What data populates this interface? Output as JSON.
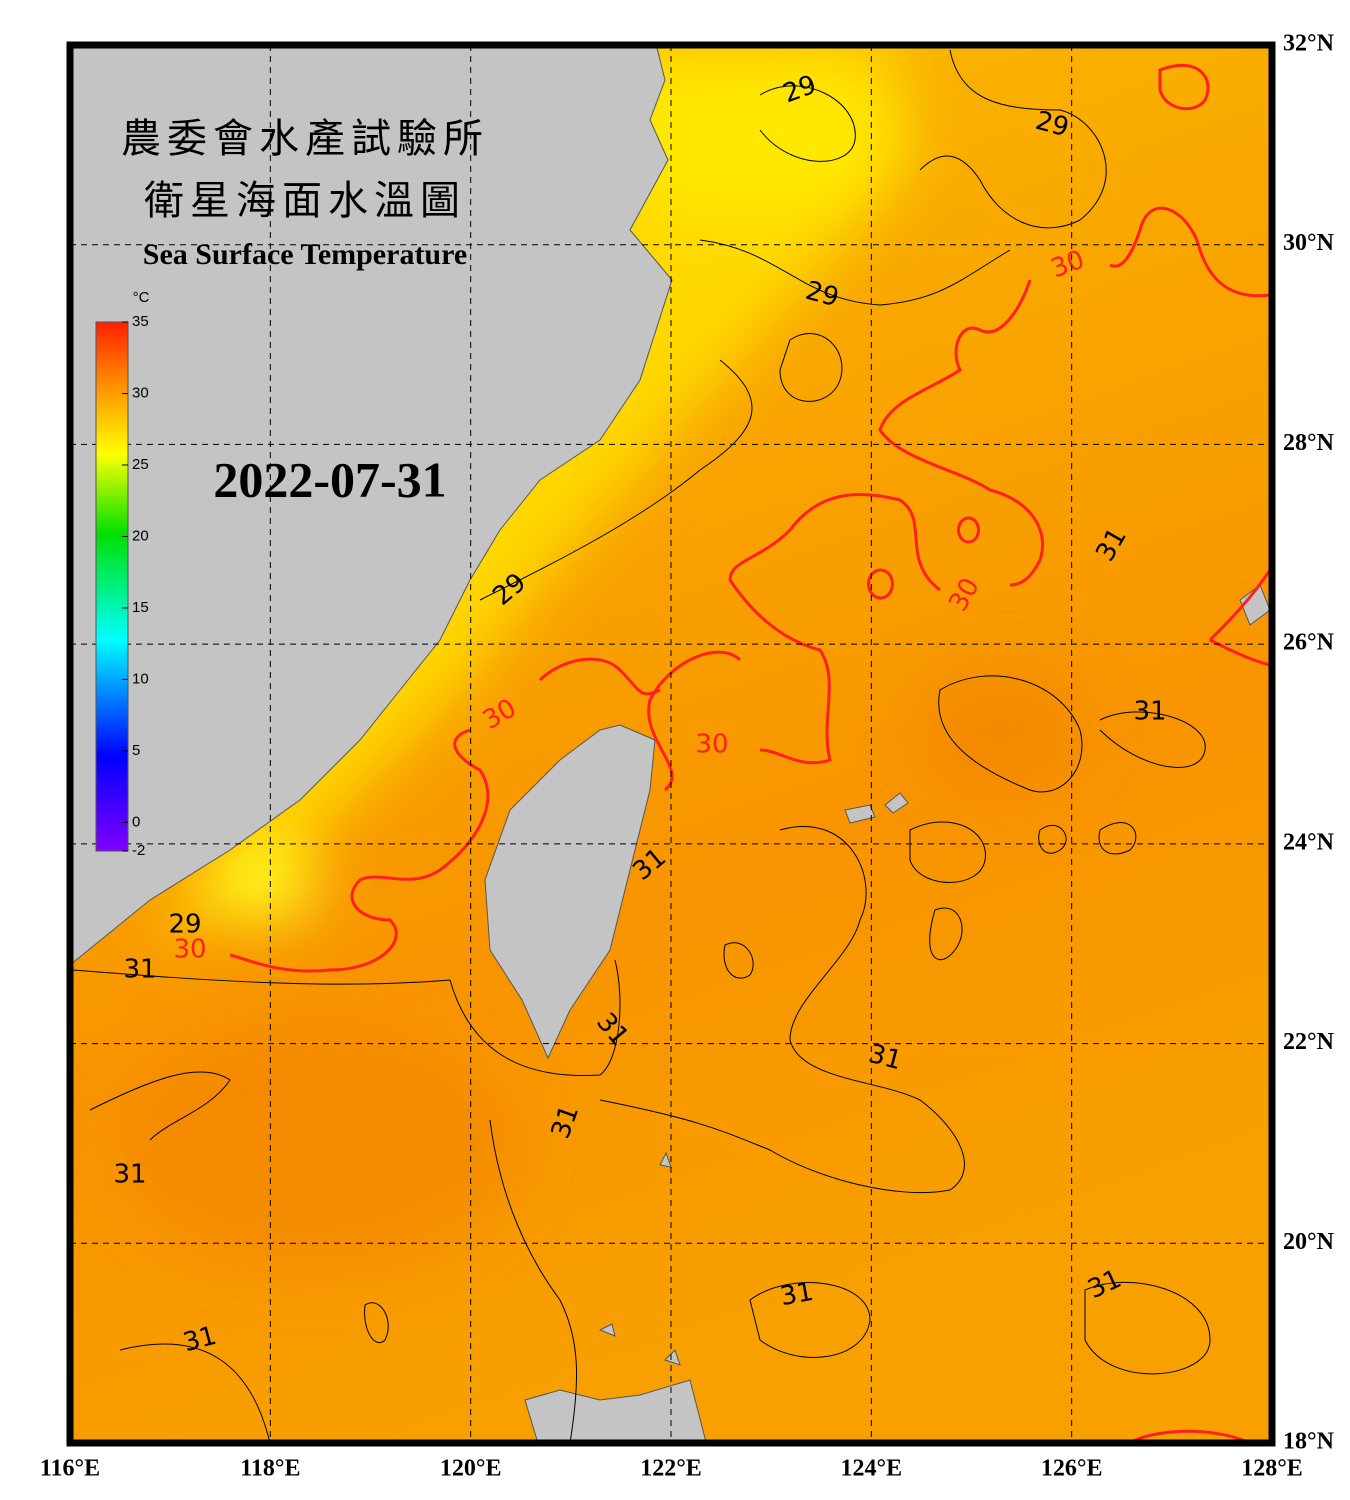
{
  "title_zh_1": "農委會水產試驗所",
  "title_zh_2": "衛星海面水溫圖",
  "title_en": "Sea Surface Temperature",
  "date": "2022-07-31",
  "colorbar": {
    "unit": "°C",
    "range": [
      -2,
      35
    ],
    "ticks": [
      35,
      30,
      25,
      20,
      15,
      10,
      5,
      0,
      -2
    ]
  },
  "lon_range": [
    116,
    128
  ],
  "lat_range": [
    18,
    32
  ],
  "lon_ticks": [
    {
      "value": 116,
      "label": "116°E"
    },
    {
      "value": 118,
      "label": "118°E"
    },
    {
      "value": 120,
      "label": "120°E"
    },
    {
      "value": 122,
      "label": "122°E"
    },
    {
      "value": 124,
      "label": "124°E"
    },
    {
      "value": 126,
      "label": "126°E"
    },
    {
      "value": 128,
      "label": "128°E"
    }
  ],
  "lat_ticks": [
    {
      "value": 32,
      "label": "32°N"
    },
    {
      "value": 30,
      "label": "30°N"
    },
    {
      "value": 28,
      "label": "28°N"
    },
    {
      "value": 26,
      "label": "26°N"
    },
    {
      "value": 24,
      "label": "24°N"
    },
    {
      "value": 22,
      "label": "22°N"
    },
    {
      "value": 20,
      "label": "20°N"
    },
    {
      "value": 18,
      "label": "18°N"
    }
  ],
  "contour_labels": [
    29,
    29,
    29,
    29,
    29,
    30,
    30,
    30,
    30,
    30,
    31,
    31,
    31,
    31,
    31,
    31,
    31,
    31,
    31,
    31,
    31
  ]
}
